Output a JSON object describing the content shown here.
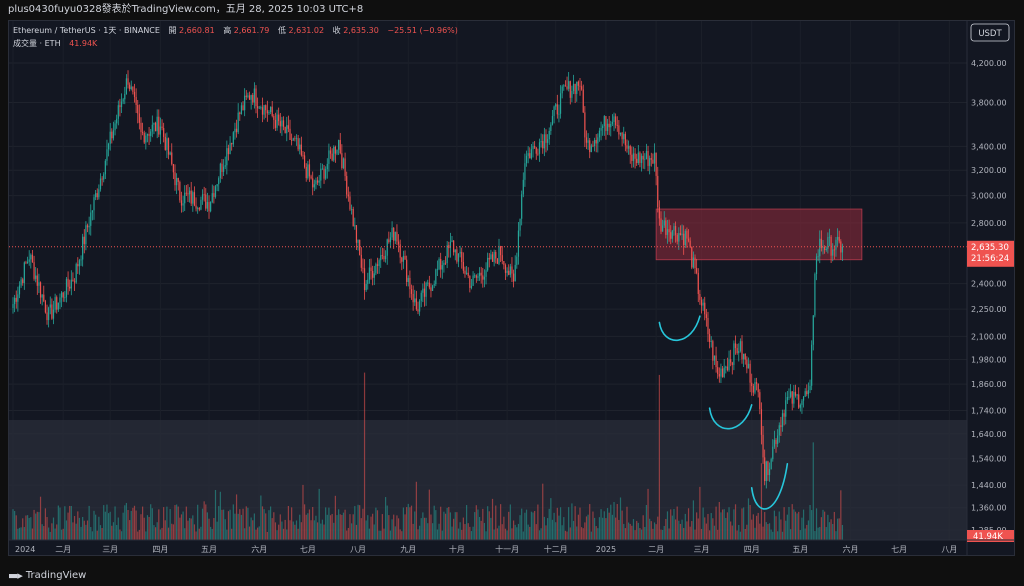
{
  "header": {
    "title": "plus0430fuyu0328發表於TradingView.com，五月 28, 2025 10:03 UTC+8"
  },
  "legend": {
    "symbol": "Ethereum / TetherUS · 1天 · BINANCE",
    "open_label": "開",
    "open": "2,660.81",
    "high_label": "高",
    "high": "2,661.79",
    "low_label": "低",
    "low": "2,631.02",
    "close_label": "收",
    "close": "2,635.30",
    "change": "−25.51 (−0.96%)",
    "volume_label": "成交量 · ETH",
    "volume": "41.94K"
  },
  "currency_button": "USDT",
  "price_tag": {
    "price": "2,635.30",
    "countdown": "21:56:24"
  },
  "volume_tag": "41.94K",
  "footer": {
    "brand": "TradingView"
  },
  "colors": {
    "up": "#26a69a",
    "down": "#ef5350",
    "zone": "#8b2a3a",
    "annotation": "#27c6da",
    "background": "#131722"
  },
  "chart_data": {
    "type": "candlestick",
    "interval": "1D",
    "yscale": "log",
    "ylim": [
      1240,
      4400
    ],
    "y_ticks": [
      4200,
      3800,
      3400,
      3200,
      3000,
      2800,
      2635.3,
      2400,
      2250,
      2100,
      1980,
      1860,
      1740,
      1640,
      1540,
      1440,
      1360,
      1285
    ],
    "y_tick_labels": [
      "4,200.00",
      "3,800.00",
      "3,400.00",
      "3,200.00",
      "3,000.00",
      "2,800.00",
      "2,635.30",
      "2,400.00",
      "2,250.00",
      "2,100.00",
      "1,980.00",
      "1,860.00",
      "1,740.00",
      "1,640.00",
      "1,540.00",
      "1,440.00",
      "1,360.00",
      "1,285.00"
    ],
    "x_labels": [
      "2024",
      "二月",
      "三月",
      "四月",
      "五月",
      "六月",
      "七月",
      "八月",
      "九月",
      "十月",
      "十一月",
      "十二月",
      "2025",
      "二月",
      "三月",
      "四月",
      "五月",
      "六月",
      "七月",
      "八月"
    ],
    "series": [
      {
        "name": "ETHUSDT",
        "close_path": [
          [
            "2024-01-01",
            2280
          ],
          [
            "2024-01-11",
            2580
          ],
          [
            "2024-01-23",
            2210
          ],
          [
            "2024-02-08",
            2450
          ],
          [
            "2024-02-20",
            2950
          ],
          [
            "2024-03-01",
            3450
          ],
          [
            "2024-03-12",
            4050
          ],
          [
            "2024-03-20",
            3500
          ],
          [
            "2024-04-01",
            3600
          ],
          [
            "2024-04-13",
            3000
          ],
          [
            "2024-05-01",
            2950
          ],
          [
            "2024-05-20",
            3700
          ],
          [
            "2024-05-27",
            3900
          ],
          [
            "2024-06-10",
            3650
          ],
          [
            "2024-06-24",
            3400
          ],
          [
            "2024-07-05",
            3050
          ],
          [
            "2024-07-20",
            3450
          ],
          [
            "2024-08-05",
            2400
          ],
          [
            "2024-08-24",
            2750
          ],
          [
            "2024-09-06",
            2250
          ],
          [
            "2024-09-28",
            2650
          ],
          [
            "2024-10-10",
            2400
          ],
          [
            "2024-10-28",
            2600
          ],
          [
            "2024-11-05",
            2400
          ],
          [
            "2024-11-12",
            3300
          ],
          [
            "2024-11-25",
            3500
          ],
          [
            "2024-12-06",
            3900
          ],
          [
            "2024-12-16",
            4000
          ],
          [
            "2024-12-20",
            3400
          ],
          [
            "2025-01-06",
            3700
          ],
          [
            "2025-01-16",
            3300
          ],
          [
            "2025-01-31",
            3300
          ],
          [
            "2025-02-03",
            2800
          ],
          [
            "2025-02-20",
            2700
          ],
          [
            "2025-03-03",
            2200
          ],
          [
            "2025-03-11",
            1900
          ],
          [
            "2025-03-24",
            2050
          ],
          [
            "2025-04-06",
            1790
          ],
          [
            "2025-04-09",
            1470
          ],
          [
            "2025-04-22",
            1780
          ],
          [
            "2025-05-07",
            1810
          ],
          [
            "2025-05-10",
            2500
          ],
          [
            "2025-05-13",
            2650
          ],
          [
            "2025-05-27",
            2635
          ]
        ],
        "volume_spikes": [
          [
            "2024-08-05",
            0.72
          ],
          [
            "2025-02-03",
            0.71
          ],
          [
            "2025-04-07",
            0.33
          ],
          [
            "2025-05-09",
            0.42
          ]
        ]
      }
    ],
    "resistance_zone": {
      "price_low": 2550,
      "price_high": 2900,
      "from": "2025-02-01",
      "to": "2025-06-08"
    },
    "last_price": 2635.3,
    "volume_last": "41.94K"
  }
}
